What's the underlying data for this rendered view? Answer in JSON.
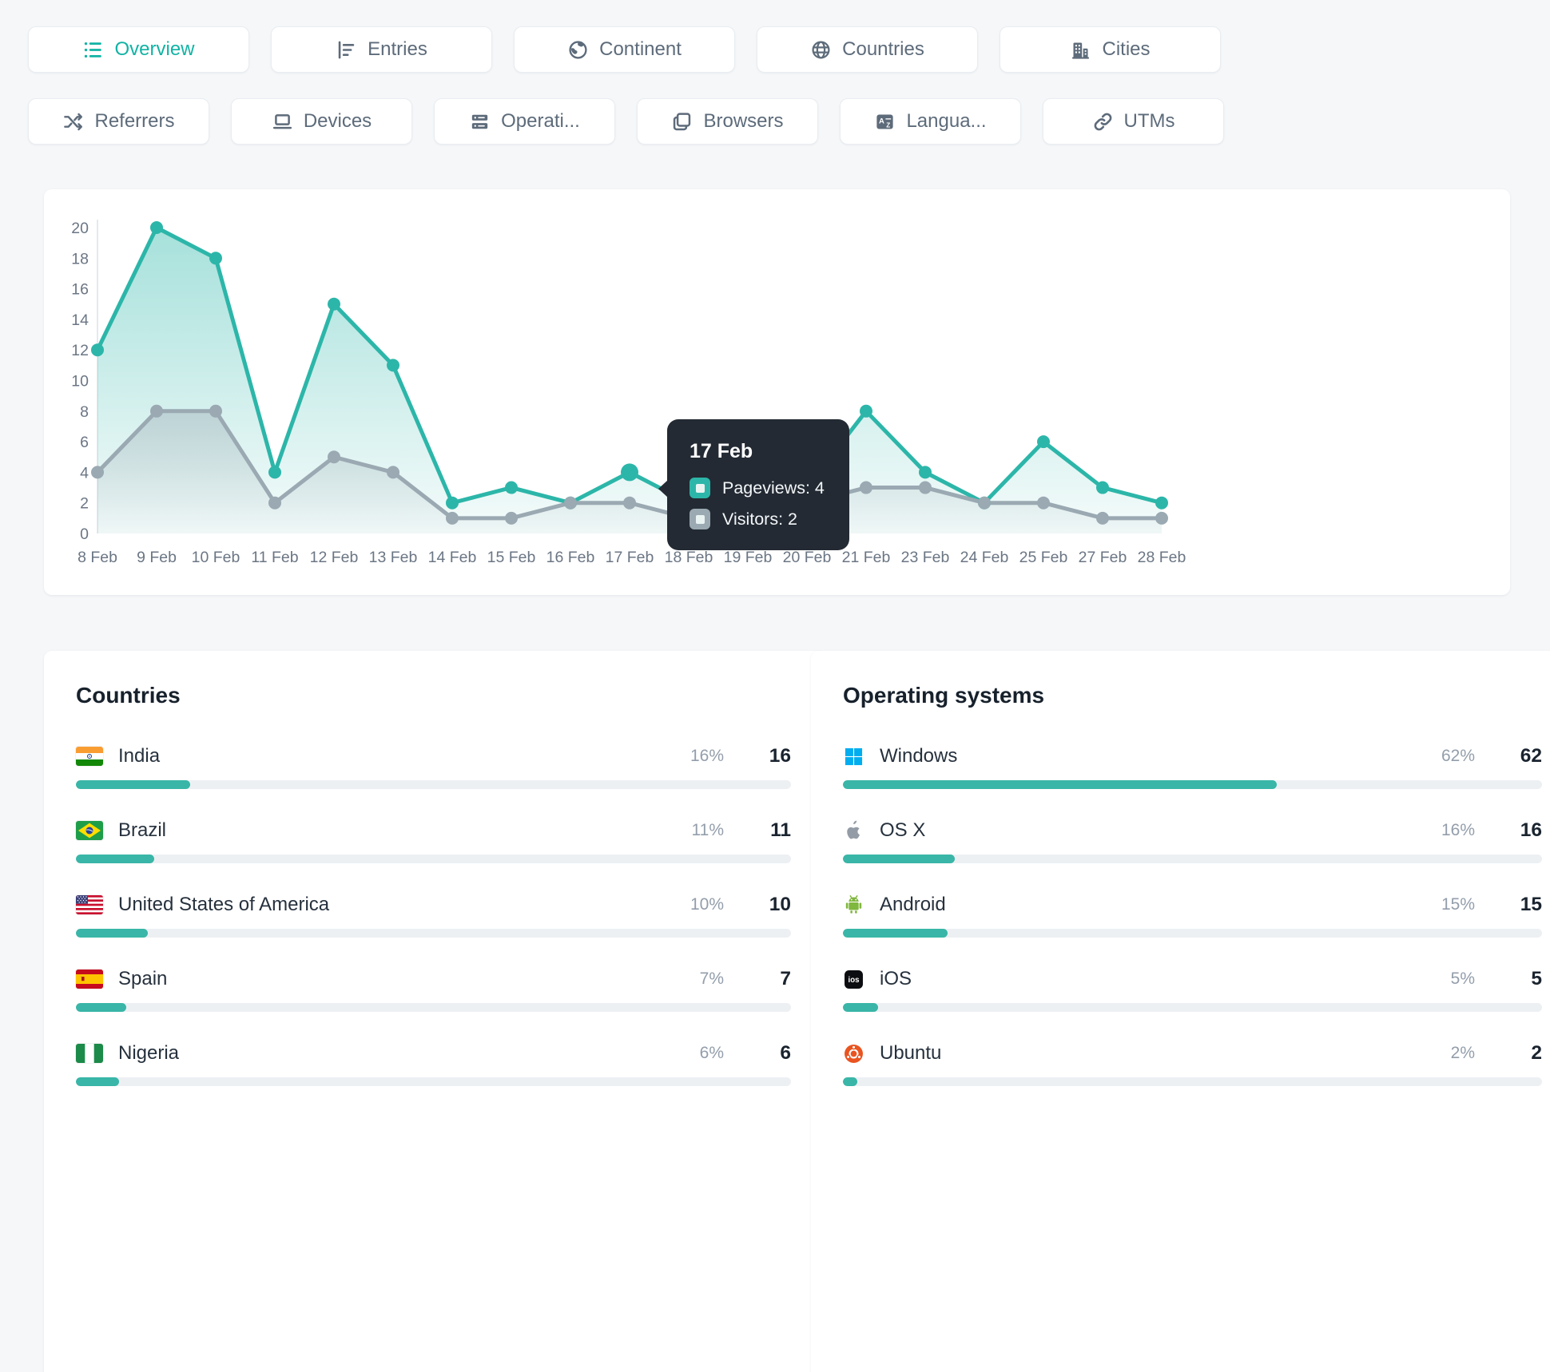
{
  "theme": {
    "accent": "#2cb6a9",
    "secondary_series": "#9aa9b2",
    "progress_fill": "#39b6a7"
  },
  "tabs_row1": [
    {
      "label": "Overview",
      "icon": "list-icon",
      "active": true
    },
    {
      "label": "Entries",
      "icon": "bar-chart-icon",
      "active": false
    },
    {
      "label": "Continent",
      "icon": "earth-icon",
      "active": false
    },
    {
      "label": "Countries",
      "icon": "globe-icon",
      "active": false
    },
    {
      "label": "Cities",
      "icon": "buildings-icon",
      "active": false
    }
  ],
  "tabs_row2": [
    {
      "label": "Referrers",
      "icon": "shuffle-icon"
    },
    {
      "label": "Devices",
      "icon": "laptop-icon"
    },
    {
      "label": "Operati...",
      "icon": "server-icon"
    },
    {
      "label": "Browsers",
      "icon": "browser-windows-icon"
    },
    {
      "label": "Langua...",
      "icon": "translate-icon"
    },
    {
      "label": "UTMs",
      "icon": "link-icon"
    }
  ],
  "chart_data": {
    "type": "area",
    "x": [
      "8 Feb",
      "9 Feb",
      "10 Feb",
      "11 Feb",
      "12 Feb",
      "13 Feb",
      "14 Feb",
      "15 Feb",
      "16 Feb",
      "17 Feb",
      "18 Feb",
      "19 Feb",
      "20 Feb",
      "21 Feb",
      "23 Feb",
      "24 Feb",
      "25 Feb",
      "27 Feb",
      "28 Feb"
    ],
    "series": [
      {
        "name": "Pageviews",
        "color": "#2cb6a9",
        "values": [
          12,
          20,
          18,
          4,
          15,
          11,
          2,
          3,
          2,
          4,
          2,
          2,
          3,
          8,
          4,
          2,
          6,
          3,
          2
        ]
      },
      {
        "name": "Visitors",
        "color": "#9aa9b2",
        "values": [
          4,
          8,
          8,
          2,
          5,
          4,
          1,
          1,
          2,
          2,
          1,
          1,
          2,
          3,
          3,
          2,
          2,
          1,
          1
        ]
      }
    ],
    "ylim": [
      0,
      20
    ],
    "yticks": [
      0,
      2,
      4,
      6,
      8,
      10,
      12,
      14,
      16,
      18,
      20
    ],
    "grid": false,
    "legend_position": "none",
    "hover_index": 9
  },
  "tooltip": {
    "title": "17 Feb",
    "rows": [
      {
        "label": "Pageviews: 4",
        "color": "#2cb6a9"
      },
      {
        "label": "Visitors: 2",
        "color": "#9aa9b2"
      }
    ]
  },
  "countries_panel": {
    "title": "Countries",
    "rows": [
      {
        "name": "India",
        "flag": "india-flag",
        "percent": 16,
        "percent_label": "16%",
        "count": "16"
      },
      {
        "name": "Brazil",
        "flag": "brazil-flag",
        "percent": 11,
        "percent_label": "11%",
        "count": "11"
      },
      {
        "name": "United States of America",
        "flag": "usa-flag",
        "percent": 10,
        "percent_label": "10%",
        "count": "10"
      },
      {
        "name": "Spain",
        "flag": "spain-flag",
        "percent": 7,
        "percent_label": "7%",
        "count": "7"
      },
      {
        "name": "Nigeria",
        "flag": "nigeria-flag",
        "percent": 6,
        "percent_label": "6%",
        "count": "6"
      }
    ]
  },
  "os_panel": {
    "title": "Operating systems",
    "rows": [
      {
        "name": "Windows",
        "icon": "windows-icon",
        "percent": 62,
        "percent_label": "62%",
        "count": "62"
      },
      {
        "name": "OS X",
        "icon": "apple-icon",
        "percent": 16,
        "percent_label": "16%",
        "count": "16"
      },
      {
        "name": "Android",
        "icon": "android-icon",
        "percent": 15,
        "percent_label": "15%",
        "count": "15"
      },
      {
        "name": "iOS",
        "icon": "ios-icon",
        "percent": 5,
        "percent_label": "5%",
        "count": "5"
      },
      {
        "name": "Ubuntu",
        "icon": "ubuntu-icon",
        "percent": 2,
        "percent_label": "2%",
        "count": "2"
      }
    ]
  }
}
